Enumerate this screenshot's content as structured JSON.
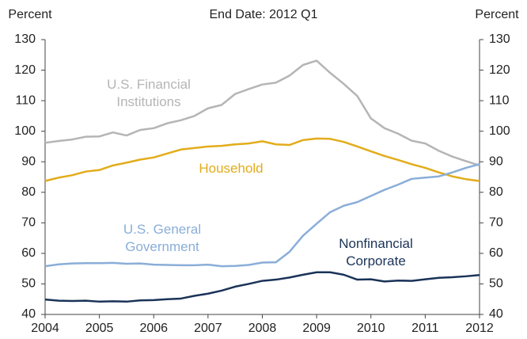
{
  "chart_data": {
    "type": "line",
    "title": "End Date: 2012 Q1",
    "ylabel": "Percent",
    "y2label": "Percent",
    "x": [
      2004,
      2004.25,
      2004.5,
      2004.75,
      2005,
      2005.25,
      2005.5,
      2005.75,
      2006,
      2006.25,
      2006.5,
      2006.75,
      2007,
      2007.25,
      2007.5,
      2007.75,
      2008,
      2008.25,
      2008.5,
      2008.75,
      2009,
      2009.25,
      2009.5,
      2009.75,
      2010,
      2010.25,
      2010.5,
      2010.75,
      2011,
      2011.25,
      2011.5,
      2011.75,
      2012
    ],
    "series": [
      {
        "name": "U.S. Financial Institutions",
        "color": "#b5b5b5",
        "values": [
          96.2,
          96.8,
          97.3,
          98.2,
          98.3,
          99.6,
          98.6,
          100.4,
          101,
          102.6,
          103.6,
          105,
          107.5,
          108.6,
          112.2,
          113.8,
          115.3,
          115.9,
          118.2,
          121.7,
          123.1,
          119.1,
          115.5,
          111.5,
          104.2,
          101,
          99.2,
          96.9,
          96,
          93.6,
          91.7,
          90.2,
          88.8
        ]
      },
      {
        "name": "Household",
        "color": "#e2ac1b",
        "values": [
          83.7,
          84.8,
          85.6,
          86.8,
          87.3,
          88.8,
          89.7,
          90.7,
          91.4,
          92.7,
          94,
          94.5,
          95,
          95.2,
          95.7,
          96,
          96.7,
          95.7,
          95.5,
          97.1,
          97.6,
          97.5,
          96.5,
          95,
          93.4,
          91.9,
          90.6,
          89.2,
          88,
          86.5,
          85.2,
          84.3,
          83.7
        ]
      },
      {
        "name": "U.S. General Government",
        "color": "#8aaed8",
        "values": [
          55.8,
          56.4,
          56.7,
          56.8,
          56.8,
          56.9,
          56.6,
          56.7,
          56.3,
          56.2,
          56.1,
          56.1,
          56.3,
          55.8,
          55.9,
          56.2,
          57,
          57.1,
          60.5,
          65.8,
          69.7,
          73.5,
          75.6,
          76.8,
          78.8,
          80.8,
          82.5,
          84.4,
          84.8,
          85.2,
          86.5,
          88,
          89.2
        ]
      },
      {
        "name": "Nonfinancial Corporate",
        "color": "#1a3358",
        "values": [
          44.9,
          44.5,
          44.4,
          44.5,
          44.2,
          44.3,
          44.2,
          44.6,
          44.7,
          45,
          45.2,
          46.1,
          46.8,
          47.8,
          49.1,
          50,
          51,
          51.4,
          52.1,
          53,
          53.8,
          53.8,
          53,
          51.4,
          51.5,
          50.8,
          51.1,
          51,
          51.5,
          52,
          52.2,
          52.5,
          52.9
        ]
      }
    ],
    "xlim": [
      2004,
      2012
    ],
    "xticks": [
      2004,
      2005,
      2006,
      2007,
      2008,
      2009,
      2010,
      2011,
      2012
    ],
    "ylim": [
      40,
      130
    ],
    "yticks": [
      40,
      50,
      60,
      70,
      80,
      90,
      100,
      110,
      120,
      130
    ],
    "y2lim": [
      40,
      130
    ],
    "y2ticks": [
      40,
      50,
      60,
      70,
      80,
      90,
      100,
      110,
      120,
      130
    ]
  }
}
